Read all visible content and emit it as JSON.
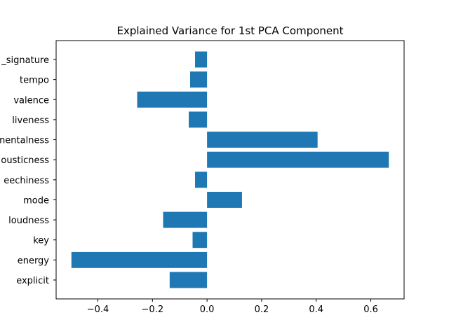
{
  "chart_data": {
    "type": "bar",
    "orientation": "horizontal",
    "title": "Explained Variance for 1st PCA Component",
    "xlabel": "",
    "ylabel": "",
    "categories": [
      "explicit",
      "energy",
      "key",
      "loudness",
      "mode",
      "speechiness",
      "acousticness",
      "instrumentalness",
      "liveness",
      "valence",
      "tempo",
      "time_signature"
    ],
    "category_labels_visible": [
      "explicit",
      "energy",
      "key",
      "loudness",
      "mode",
      "eechiness",
      "ousticness",
      "nentalness",
      "liveness",
      "valence",
      "tempo",
      "_signature"
    ],
    "values": [
      -0.137,
      -0.497,
      -0.053,
      -0.161,
      0.128,
      -0.044,
      0.666,
      0.405,
      -0.067,
      -0.256,
      -0.062,
      -0.044
    ],
    "xlim": [
      -0.553,
      0.722
    ],
    "xticks": [
      -0.4,
      -0.2,
      0.0,
      0.2,
      0.4,
      0.6
    ],
    "xtick_labels": [
      "−0.4",
      "−0.2",
      "0.0",
      "0.2",
      "0.4",
      "0.6"
    ],
    "bar_color": "#1f77b4",
    "grid": false
  }
}
